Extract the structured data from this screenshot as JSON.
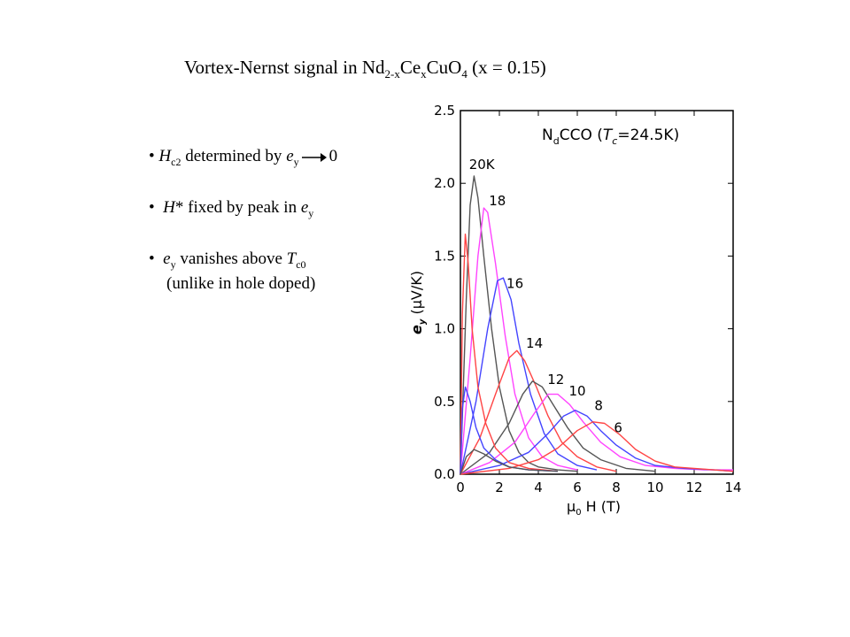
{
  "slide": {
    "title": {
      "prefix": "Vortex-Nernst signal in Nd",
      "sub1": "2-x",
      "mid1": "Ce",
      "sub2": "x",
      "mid2": "CuO",
      "sub3": "4",
      "suffix": " (x = 0.15)"
    },
    "bullets": [
      {
        "bullet": "•",
        "sym": "H",
        "sub": "c2",
        "text": " determined by ",
        "sym2": "e",
        "sub2": "y",
        "end": "0"
      },
      {
        "bullet": "•",
        "sym": "H",
        "text": "* fixed by peak in ",
        "sym2": "e",
        "sub2": "y"
      },
      {
        "bullet": "•",
        "sym": "e",
        "sub": "y",
        "text": " vanishes above ",
        "sym2": "T",
        "sub2": "c0",
        "line2": "(unlike in hole doped)"
      }
    ]
  },
  "chart_data": {
    "type": "line",
    "title": "N",
    "title_sub": "d",
    "title_rest": "CCO (",
    "title_T": "T",
    "title_Tsub": "c",
    "title_end": "=24.5K)",
    "xlabel_mu": "μ",
    "xlabel_sub": "0",
    "xlabel_rest": " H (T)",
    "ylabel_e": "e",
    "ylabel_sub": "y",
    "ylabel_rest": " (μV/K)",
    "xlim": [
      0,
      14
    ],
    "ylim": [
      0,
      2.5
    ],
    "xticks": [
      "0",
      "2",
      "4",
      "6",
      "8",
      "10",
      "12",
      "14"
    ],
    "yticks": [
      "0.0",
      "0.5",
      "1.0",
      "1.5",
      "2.0",
      "2.5"
    ],
    "grid": false,
    "series": [
      {
        "name": "20K",
        "color": "#555555",
        "x": [
          0,
          0.3,
          0.5,
          0.7,
          0.9,
          1.2,
          1.6,
          2.0,
          2.5,
          3.0,
          3.5,
          4.0,
          5.0,
          6.0
        ],
        "y": [
          0,
          1.2,
          1.85,
          2.05,
          1.9,
          1.5,
          1.0,
          0.6,
          0.3,
          0.15,
          0.08,
          0.05,
          0.03,
          0.02
        ]
      },
      {
        "name": "18",
        "color": "#ff44ff",
        "x": [
          0,
          0.5,
          0.9,
          1.2,
          1.4,
          1.8,
          2.3,
          2.8,
          3.5,
          4.2,
          5.0,
          6.0
        ],
        "y": [
          0,
          0.8,
          1.5,
          1.83,
          1.8,
          1.45,
          0.95,
          0.55,
          0.25,
          0.12,
          0.06,
          0.03
        ]
      },
      {
        "name": "16",
        "color": "#4444ff",
        "x": [
          0,
          0.8,
          1.4,
          1.9,
          2.2,
          2.6,
          3.0,
          3.6,
          4.3,
          5.0,
          6.0,
          7.0
        ],
        "y": [
          0,
          0.5,
          1.0,
          1.33,
          1.35,
          1.2,
          0.9,
          0.55,
          0.28,
          0.14,
          0.06,
          0.03
        ]
      },
      {
        "name": "14",
        "color": "#ff4444",
        "x": [
          0,
          1.0,
          1.8,
          2.5,
          2.9,
          3.3,
          3.9,
          4.5,
          5.2,
          6.0,
          7.0,
          8.0
        ],
        "y": [
          0,
          0.25,
          0.55,
          0.8,
          0.85,
          0.78,
          0.6,
          0.4,
          0.22,
          0.12,
          0.05,
          0.02
        ]
      },
      {
        "name": "12",
        "color": "#555555",
        "x": [
          0,
          1.5,
          2.5,
          3.2,
          3.7,
          4.2,
          4.8,
          5.5,
          6.3,
          7.2,
          8.5,
          10.0
        ],
        "y": [
          0,
          0.15,
          0.35,
          0.55,
          0.64,
          0.6,
          0.47,
          0.32,
          0.18,
          0.1,
          0.04,
          0.02
        ]
      },
      {
        "name": "10",
        "color": "#ff44ff",
        "x": [
          0,
          1.5,
          2.8,
          3.8,
          4.5,
          5.0,
          5.6,
          6.3,
          7.2,
          8.2,
          9.5,
          11.0,
          12.5,
          14.0
        ],
        "y": [
          0,
          0.08,
          0.22,
          0.42,
          0.55,
          0.55,
          0.48,
          0.36,
          0.22,
          0.12,
          0.06,
          0.04,
          0.03,
          0.03
        ]
      },
      {
        "name": "8",
        "color": "#4444ff",
        "x": [
          0,
          2.0,
          3.5,
          4.5,
          5.3,
          5.9,
          6.5,
          7.2,
          8.0,
          9.0,
          10.0,
          11.5,
          13.0,
          14.0
        ],
        "y": [
          0,
          0.06,
          0.15,
          0.28,
          0.4,
          0.44,
          0.4,
          0.3,
          0.2,
          0.11,
          0.06,
          0.04,
          0.03,
          0.02
        ]
      },
      {
        "name": "6",
        "color": "#ff4444",
        "x": [
          0,
          2.5,
          4.0,
          5.0,
          6.0,
          6.8,
          7.4,
          8.2,
          9.0,
          10.0,
          11.0,
          12.0,
          13.0,
          14.0
        ],
        "y": [
          0,
          0.04,
          0.1,
          0.18,
          0.3,
          0.36,
          0.35,
          0.27,
          0.17,
          0.09,
          0.05,
          0.04,
          0.03,
          0.02
        ]
      },
      {
        "name": "",
        "color": "#ff4444",
        "x": [
          0,
          0.1,
          0.25,
          0.4,
          0.6,
          0.9,
          1.3,
          1.8,
          2.5,
          3.5,
          5.0
        ],
        "y": [
          0,
          1.1,
          1.65,
          1.45,
          1.0,
          0.6,
          0.35,
          0.18,
          0.08,
          0.04,
          0.02
        ]
      },
      {
        "name": "",
        "color": "#4444ff",
        "x": [
          0,
          0.1,
          0.25,
          0.5,
          0.8,
          1.2,
          1.8,
          2.5,
          3.5,
          5.0
        ],
        "y": [
          0,
          0.45,
          0.6,
          0.5,
          0.32,
          0.18,
          0.1,
          0.05,
          0.03,
          0.02
        ]
      },
      {
        "name": "",
        "color": "#555555",
        "x": [
          0,
          0.3,
          0.7,
          1.2,
          1.8,
          2.5,
          3.5,
          5.0
        ],
        "y": [
          0,
          0.12,
          0.17,
          0.14,
          0.09,
          0.05,
          0.03,
          0.02
        ]
      }
    ],
    "annotations": [
      {
        "text": "20K",
        "x": 1.1,
        "y": 2.1
      },
      {
        "text": "18",
        "x": 1.9,
        "y": 1.85
      },
      {
        "text": "16",
        "x": 2.8,
        "y": 1.28
      },
      {
        "text": "14",
        "x": 3.8,
        "y": 0.87
      },
      {
        "text": "12",
        "x": 4.9,
        "y": 0.62
      },
      {
        "text": "10",
        "x": 6.0,
        "y": 0.54
      },
      {
        "text": "8",
        "x": 7.1,
        "y": 0.44
      },
      {
        "text": "6",
        "x": 8.1,
        "y": 0.29
      }
    ]
  }
}
